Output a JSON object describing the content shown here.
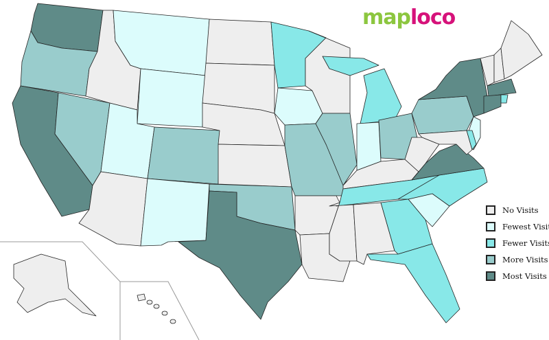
{
  "logo": {
    "part1": "map",
    "part2": "loco"
  },
  "colors": {
    "none": "#eeeeee",
    "fewest": "#dcfcfc",
    "fewer": "#88e8e8",
    "more": "#99cccc",
    "most": "#5f8b88"
  },
  "legend": [
    {
      "key": "none",
      "label": "No Visits"
    },
    {
      "key": "fewest",
      "label": "Fewest Visits"
    },
    {
      "key": "fewer",
      "label": "Fewer Visits"
    },
    {
      "key": "more",
      "label": "More Visits"
    },
    {
      "key": "most",
      "label": "Most Visits"
    }
  ],
  "state_visits": {
    "WA": "most",
    "CA": "most",
    "TX": "most",
    "NY": "most",
    "VA": "most",
    "MA": "most",
    "CT": "most",
    "OR": "more",
    "NV": "more",
    "CO": "more",
    "OK": "more",
    "MO": "more",
    "IL": "more",
    "OH": "more",
    "PA": "more",
    "MN": "fewer",
    "MI": "fewer",
    "MIU": "fewer",
    "TN": "fewer",
    "NC": "fewer",
    "GA": "fewer",
    "FL": "fewer",
    "RI": "fewer",
    "DE": "fewer",
    "MT": "fewest",
    "WY": "fewest",
    "UT": "fewest",
    "NM": "fewest",
    "IA": "fewest",
    "IN": "fewest",
    "SC": "fewest",
    "NJ": "fewest",
    "ID": "none",
    "AZ": "none",
    "ND": "none",
    "SD": "none",
    "NE": "none",
    "KS": "none",
    "AR": "none",
    "LA": "none",
    "MS": "none",
    "AL": "none",
    "WI": "none",
    "KY": "none",
    "WV": "none",
    "VT": "none",
    "NH": "none",
    "ME": "none",
    "MD": "none",
    "AK": "none",
    "HI": "none"
  }
}
